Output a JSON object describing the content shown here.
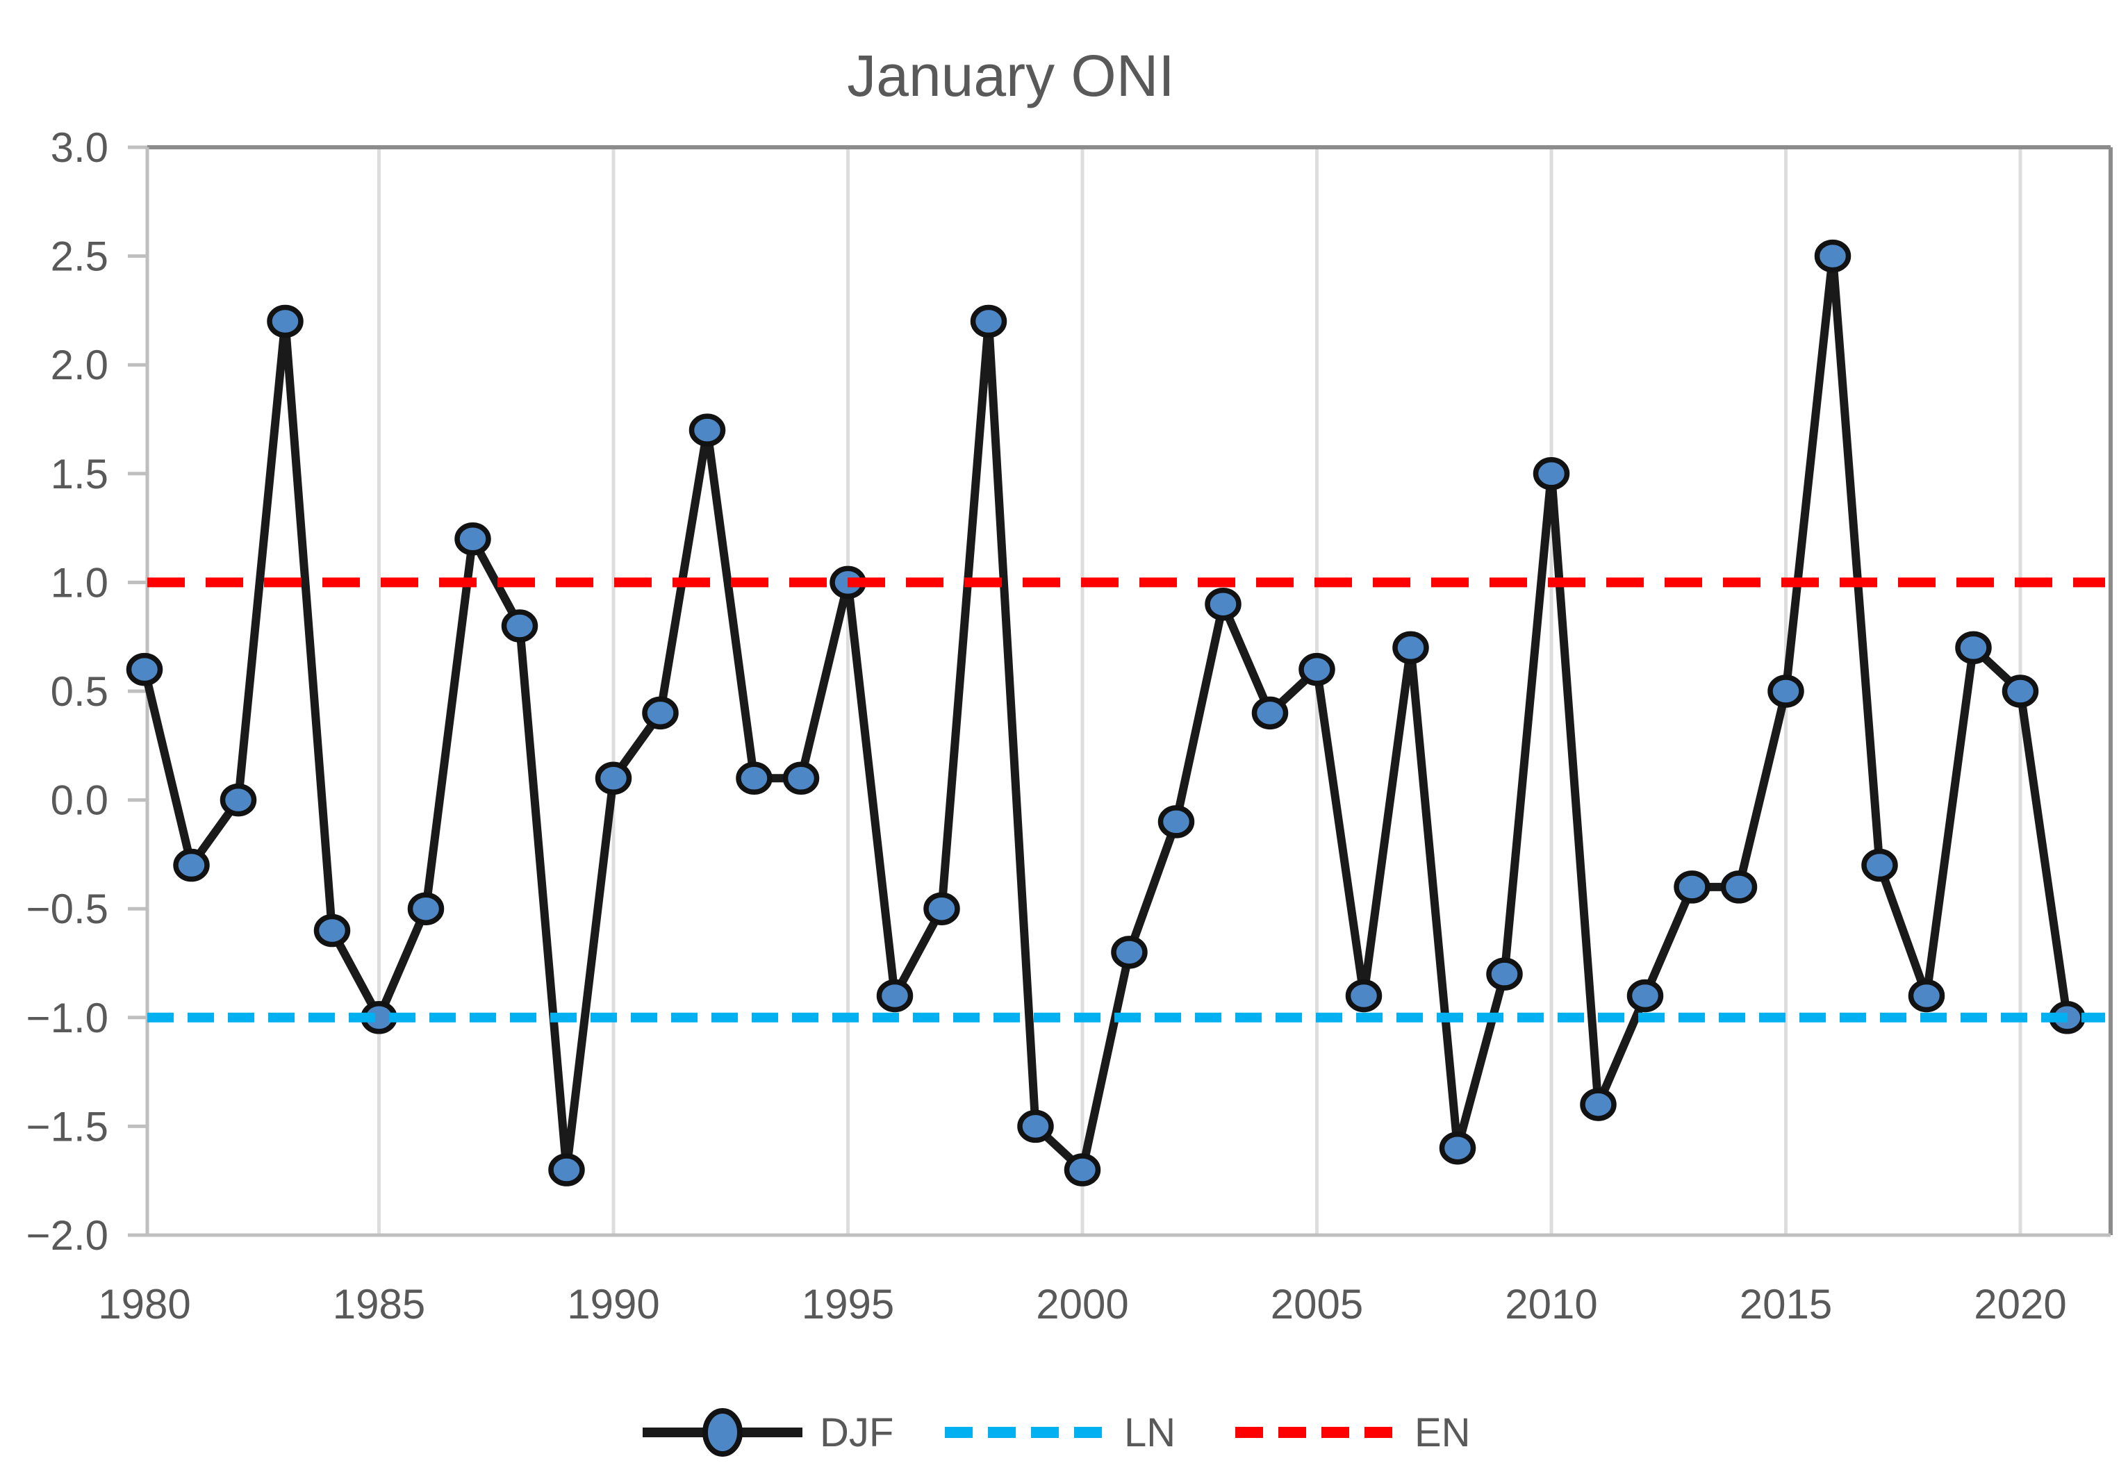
{
  "chart_data": {
    "type": "line",
    "title": "January ONI",
    "x": [
      1980,
      1981,
      1982,
      1983,
      1984,
      1985,
      1986,
      1987,
      1988,
      1989,
      1990,
      1991,
      1992,
      1993,
      1994,
      1995,
      1996,
      1997,
      1998,
      1999,
      2000,
      2001,
      2002,
      2003,
      2004,
      2005,
      2006,
      2007,
      2008,
      2009,
      2010,
      2011,
      2012,
      2013,
      2014,
      2015,
      2016,
      2017,
      2018,
      2019,
      2020,
      2021
    ],
    "series": [
      {
        "name": "DJF",
        "values": [
          0.6,
          -0.3,
          0.0,
          2.2,
          -0.6,
          -1.0,
          -0.5,
          1.2,
          0.8,
          -1.7,
          0.1,
          0.4,
          1.7,
          0.1,
          0.1,
          1.0,
          -0.9,
          -0.5,
          2.2,
          -1.5,
          -1.7,
          -0.7,
          -0.1,
          0.9,
          0.4,
          0.6,
          -0.9,
          0.7,
          -1.6,
          -0.8,
          1.5,
          -1.4,
          -0.9,
          -0.4,
          -0.4,
          0.5,
          2.5,
          -0.3,
          -0.9,
          0.7,
          0.5,
          -1.0
        ],
        "line_color": "#1a1a1a",
        "marker_fill": "#4E87C6",
        "marker_outline": "#121212"
      }
    ],
    "ref_lines": [
      {
        "label": "LN",
        "value": -1.0,
        "color": "#00B0F0",
        "style": "dashed"
      },
      {
        "label": "EN",
        "value": 1.0,
        "color": "#FF0000",
        "style": "dashed"
      }
    ],
    "xlabel": "",
    "ylabel": "",
    "ylim": [
      -2.0,
      3.0
    ],
    "ytick_step": 0.5,
    "ytick_labels": [
      "3.0",
      "2.5",
      "2.0",
      "1.5",
      "1.0",
      "0.5",
      "0.0",
      "−0.5",
      "−1.0",
      "−1.5",
      "−2.0"
    ],
    "xticks": [
      1980,
      1985,
      1990,
      1995,
      2000,
      2005,
      2010,
      2015,
      2020
    ],
    "grid": "vertical-only",
    "legend_position": "bottom",
    "colors": {
      "axis_text": "#595959",
      "gridline": "#DDDDDD",
      "axis_line": "#BFBFBF",
      "plot_border": "#8C8C8C",
      "background": "#FFFFFF"
    }
  },
  "legend": {
    "items": [
      {
        "label": "DJF"
      },
      {
        "label": "LN"
      },
      {
        "label": "EN"
      }
    ]
  }
}
